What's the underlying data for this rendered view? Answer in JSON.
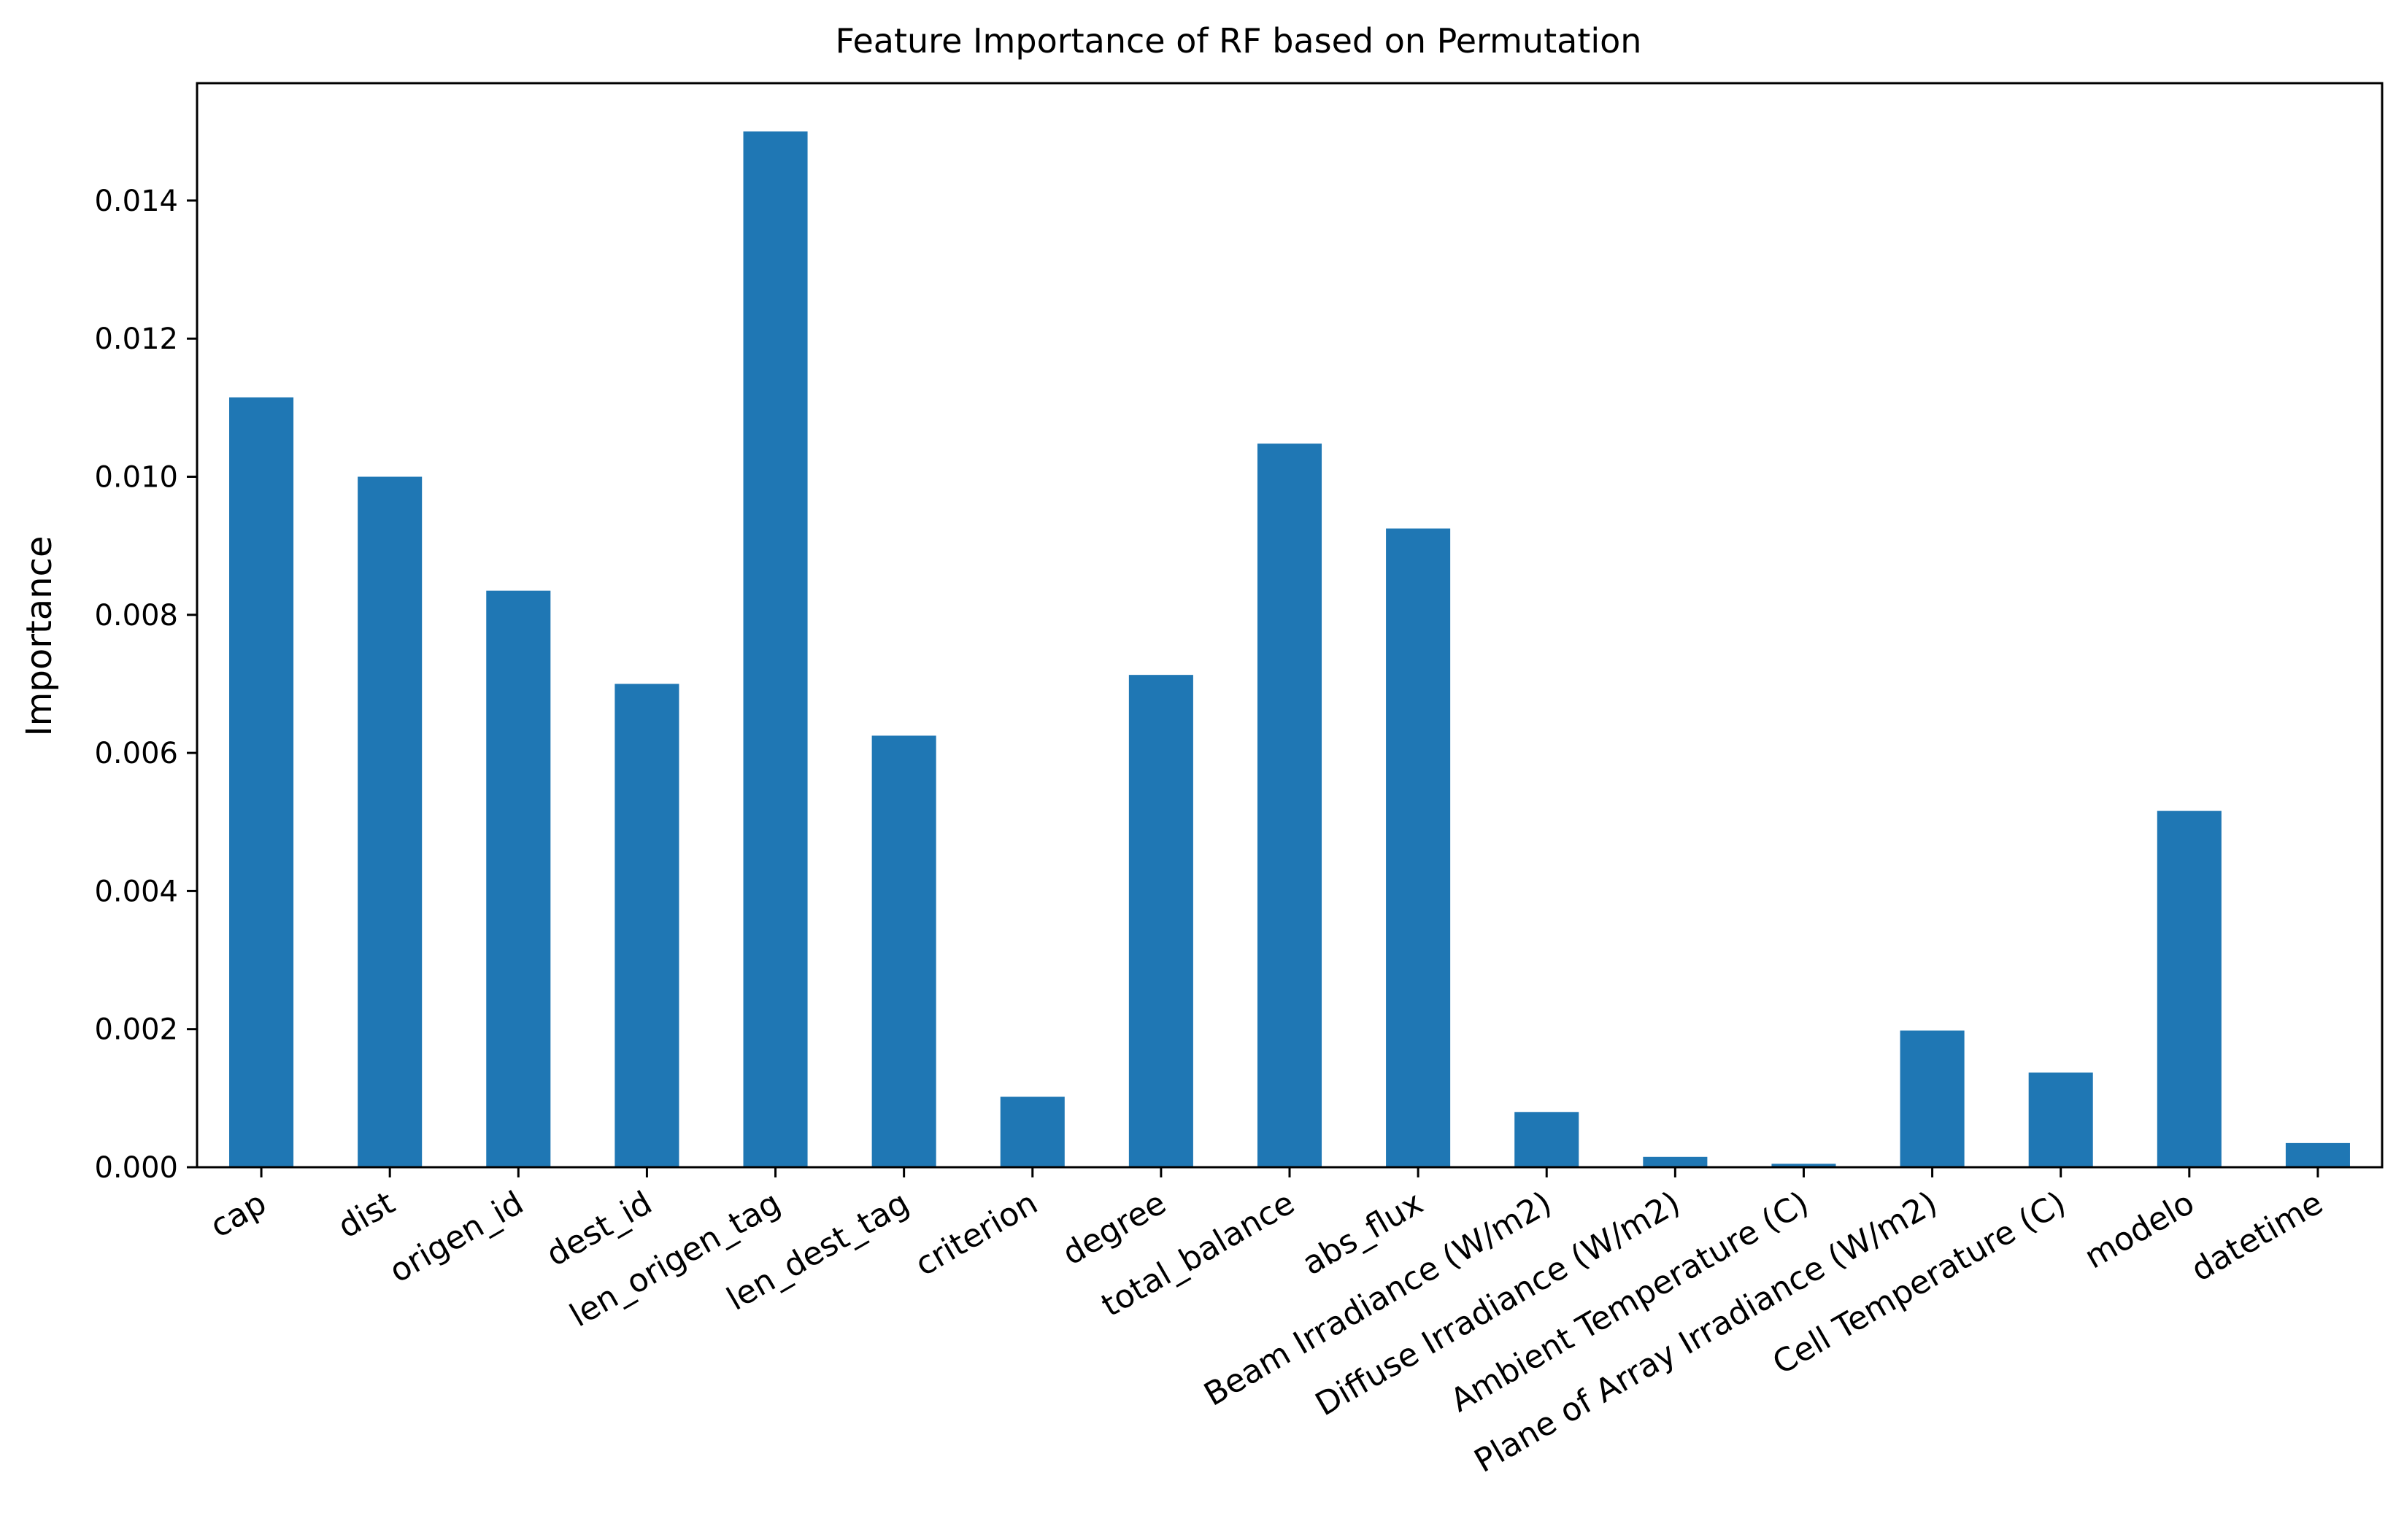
{
  "chart_data": {
    "type": "bar",
    "title": "Feature Importance of RF based on Permutation",
    "xlabel": "",
    "ylabel": "Importance",
    "ylim": [
      0,
      0.0157
    ],
    "yticks": [
      0.0,
      0.002,
      0.004,
      0.006,
      0.008,
      0.01,
      0.012,
      0.014
    ],
    "ytick_labels": [
      "0.000",
      "0.002",
      "0.004",
      "0.006",
      "0.008",
      "0.010",
      "0.012",
      "0.014"
    ],
    "bar_color": "#1f77b4",
    "categories": [
      "cap",
      "dist",
      "origen_id",
      "dest_id",
      "len_origen_tag",
      "len_dest_tag",
      "criterion",
      "degree",
      "total_balance",
      "abs_flux",
      "Beam Irradiance (W/m2)",
      "Diffuse Irradiance (W/m2)",
      "Ambient Temperature (C)",
      "Plane of Array Irradiance (W/m2)",
      "Cell Temperature (C)",
      "modelo",
      "datetime"
    ],
    "values": [
      0.01115,
      0.01,
      0.00835,
      0.007,
      0.015,
      0.00625,
      0.00102,
      0.00713,
      0.01048,
      0.00925,
      0.0008,
      0.00015,
      5e-05,
      0.00198,
      0.00137,
      0.00516,
      0.00035
    ],
    "grid": false,
    "legend": "none"
  }
}
